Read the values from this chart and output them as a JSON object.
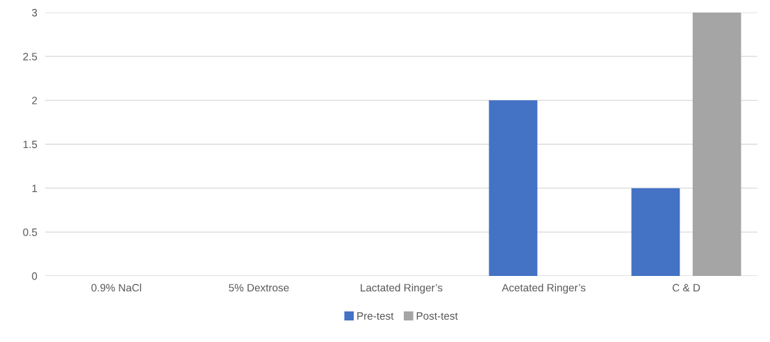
{
  "chart_data": {
    "type": "bar",
    "categories": [
      "0.9% NaCl",
      "5% Dextrose",
      "Lactated Ringer’s",
      "Acetated Ringer’s",
      "C & D"
    ],
    "series": [
      {
        "name": "Pre-test",
        "color": "#4472c4",
        "values": [
          0,
          0,
          0,
          2,
          1
        ]
      },
      {
        "name": "Post-test",
        "color": "#a5a5a5",
        "values": [
          0,
          0,
          0,
          0,
          3
        ]
      }
    ],
    "ylim": [
      0,
      3
    ],
    "yticks": [
      0,
      0.5,
      1,
      1.5,
      2,
      2.5,
      3
    ],
    "grid": "y",
    "legend": "bottom"
  }
}
